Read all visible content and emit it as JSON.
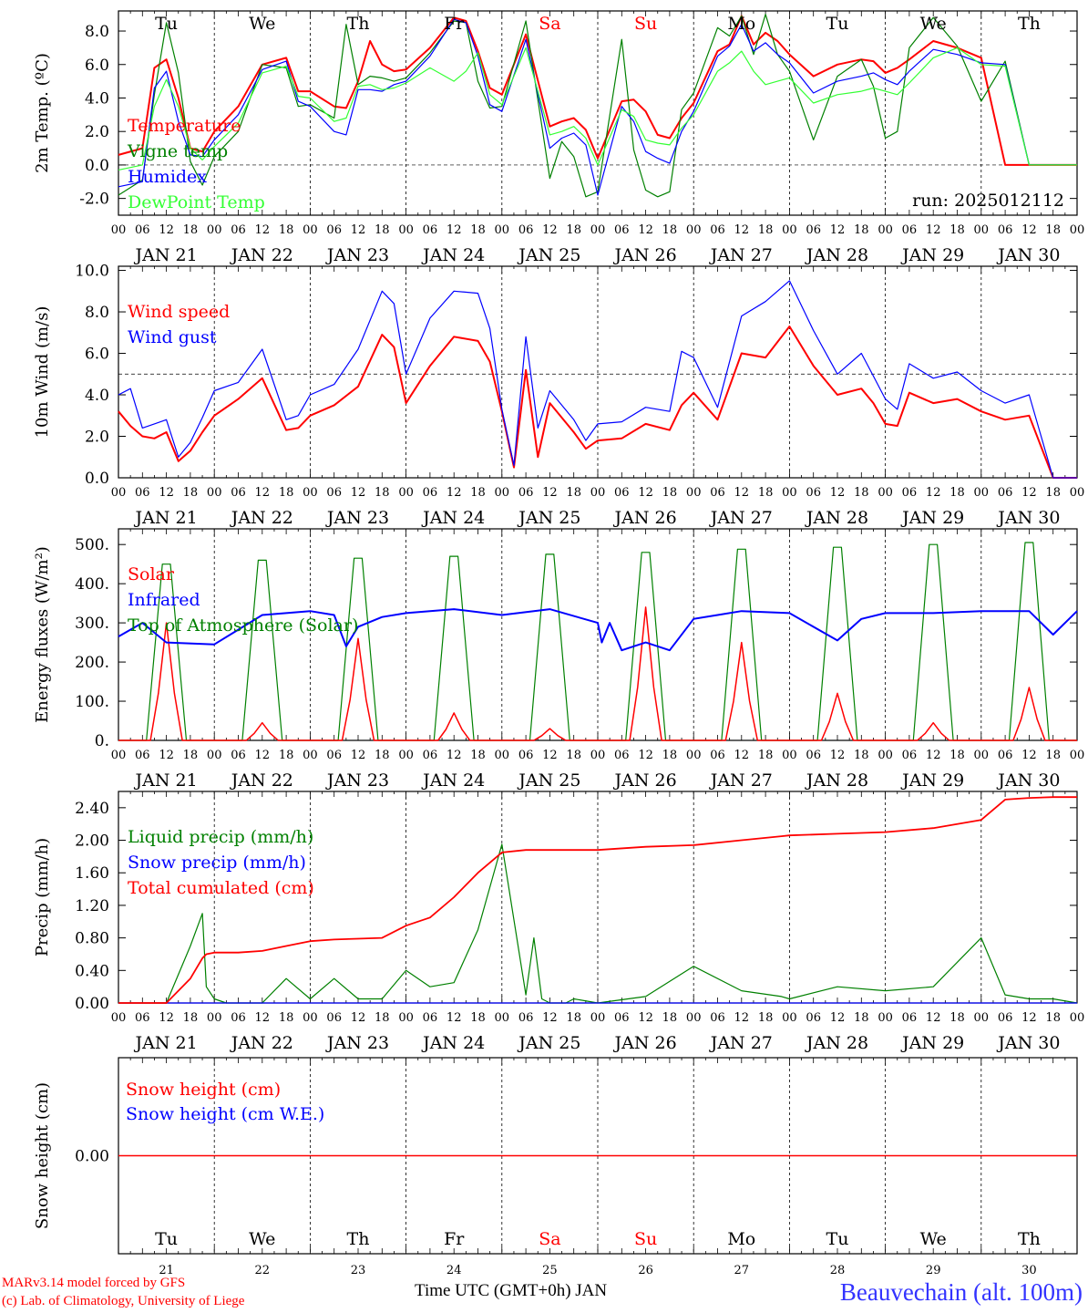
{
  "chart_data": [
    {
      "type": "line",
      "ylabel": "2m Temp. (ºC)",
      "ylim": [
        -3.0,
        9.2
      ],
      "yticks": [
        "8.0",
        "6.0",
        "4.0",
        "2.0",
        "0.0",
        "-2.0"
      ],
      "ref_line": 0,
      "annotation": "run: 2025012112",
      "x_unit": "hours since JAN 21 00 UTC",
      "x": [
        0,
        6,
        9,
        12,
        15,
        18,
        21,
        24,
        30,
        36,
        42,
        45,
        48,
        54,
        57,
        60,
        63,
        66,
        69,
        72,
        78,
        84,
        87,
        90,
        93,
        96,
        102,
        108,
        111,
        114,
        117,
        120,
        126,
        129,
        132,
        135,
        138,
        141,
        144,
        150,
        153,
        156,
        159,
        162,
        165,
        168,
        174,
        180,
        186,
        189,
        192,
        195,
        198,
        204,
        210,
        216,
        222,
        228,
        234,
        240
      ],
      "series": [
        {
          "name": "Temperature",
          "color": "#ff0000",
          "values": [
            0.6,
            1.0,
            5.8,
            6.3,
            4.0,
            1.0,
            0.8,
            2.0,
            3.5,
            6.0,
            6.4,
            4.4,
            4.4,
            3.5,
            3.4,
            5.0,
            7.4,
            6.0,
            5.6,
            5.7,
            7.0,
            8.8,
            8.6,
            6.8,
            4.6,
            4.2,
            7.8,
            2.3,
            2.6,
            2.8,
            2.1,
            0.4,
            3.8,
            3.9,
            3.2,
            1.8,
            1.6,
            2.8,
            3.7,
            6.8,
            7.2,
            8.9,
            7.2,
            7.9,
            7.4,
            6.6,
            5.3,
            6.0,
            6.3,
            6.2,
            5.5,
            5.8,
            6.3,
            7.4,
            7.0,
            6.4,
            0.0,
            0.0,
            0.0,
            0.0
          ]
        },
        {
          "name": "Vigne temp",
          "color": "#008000",
          "values": [
            -1.8,
            -0.9,
            4.2,
            8.5,
            5.5,
            0.2,
            -1.2,
            0.5,
            2.0,
            6.0,
            5.8,
            3.5,
            3.6,
            2.8,
            8.4,
            4.8,
            5.3,
            5.2,
            5.0,
            5.2,
            6.7,
            8.6,
            8.5,
            5.0,
            3.4,
            3.5,
            8.6,
            -0.8,
            1.4,
            0.5,
            -1.9,
            -1.6,
            7.5,
            0.9,
            -1.5,
            -1.9,
            -1.6,
            3.3,
            4.3,
            8.2,
            7.7,
            8.9,
            6.6,
            9.0,
            6.6,
            5.6,
            1.5,
            5.3,
            6.3,
            4.7,
            1.6,
            2.0,
            7.0,
            8.8,
            7.1,
            3.8,
            6.2,
            0.0,
            0.0,
            0.0
          ]
        },
        {
          "name": "Humidex",
          "color": "#0000ff",
          "values": [
            -1.3,
            -1.0,
            4.6,
            5.6,
            2.6,
            0.6,
            0.5,
            1.5,
            3.0,
            5.7,
            6.2,
            3.8,
            3.5,
            2.0,
            1.8,
            4.5,
            4.5,
            4.4,
            4.8,
            5.0,
            6.5,
            8.7,
            8.5,
            6.5,
            3.6,
            3.2,
            7.5,
            1.0,
            1.6,
            1.9,
            1.2,
            -1.8,
            3.5,
            2.6,
            0.8,
            0.4,
            0.1,
            2.0,
            3.2,
            6.5,
            7.1,
            8.4,
            6.8,
            7.3,
            6.6,
            6.1,
            4.3,
            5.0,
            5.3,
            5.5,
            5.1,
            4.8,
            5.6,
            6.9,
            6.6,
            6.1,
            6.0,
            0.0,
            0.0,
            0.0
          ]
        },
        {
          "name": "DewPoint Temp",
          "color": "#33ff33",
          "values": [
            -0.3,
            0.0,
            3.5,
            5.1,
            3.5,
            1.0,
            0.3,
            1.1,
            2.5,
            5.5,
            5.9,
            4.1,
            4.0,
            2.6,
            2.8,
            4.7,
            4.8,
            4.5,
            4.6,
            4.9,
            5.8,
            5.0,
            5.6,
            6.7,
            4.2,
            3.6,
            7.0,
            1.8,
            2.0,
            2.3,
            1.6,
            0.0,
            3.3,
            2.9,
            1.5,
            1.3,
            1.2,
            2.2,
            3.0,
            5.6,
            6.1,
            6.8,
            5.6,
            4.8,
            5.0,
            5.2,
            3.7,
            4.2,
            4.4,
            4.6,
            4.4,
            4.2,
            4.9,
            6.4,
            7.0,
            6.0,
            5.9,
            0.0,
            0.0,
            0.0
          ]
        }
      ]
    },
    {
      "type": "line",
      "ylabel": "10m Wind (m/s)",
      "ylim": [
        0,
        10
      ],
      "yticks": [
        "10.0",
        "8.0",
        "6.0",
        "4.0",
        "2.0",
        "0.0"
      ],
      "ref_line": 5,
      "x_unit": "hours since JAN 21 00 UTC",
      "x": [
        0,
        3,
        6,
        9,
        12,
        15,
        18,
        21,
        24,
        30,
        36,
        42,
        45,
        48,
        54,
        60,
        66,
        69,
        72,
        78,
        84,
        90,
        93,
        96,
        99,
        102,
        105,
        108,
        114,
        117,
        120,
        126,
        132,
        138,
        141,
        144,
        150,
        156,
        162,
        168,
        174,
        180,
        186,
        189,
        192,
        195,
        198,
        204,
        210,
        216,
        222,
        228,
        234,
        240
      ],
      "series": [
        {
          "name": "Wind speed",
          "color": "#ff0000",
          "values": [
            3.2,
            2.5,
            2.0,
            1.9,
            2.2,
            0.8,
            1.3,
            2.2,
            3.0,
            3.8,
            4.8,
            2.3,
            2.4,
            3.0,
            3.5,
            4.4,
            6.9,
            6.3,
            3.6,
            5.4,
            6.8,
            6.6,
            5.6,
            3.2,
            0.5,
            5.2,
            1.0,
            3.6,
            2.2,
            1.4,
            1.8,
            1.9,
            2.6,
            2.3,
            3.5,
            4.1,
            2.8,
            6.0,
            5.8,
            7.3,
            5.4,
            4.0,
            4.3,
            3.6,
            2.6,
            2.5,
            4.1,
            3.6,
            3.8,
            3.2,
            2.8,
            3.0,
            0.0,
            0.0
          ]
        },
        {
          "name": "Wind gust",
          "color": "#0000ff",
          "values": [
            4.0,
            4.3,
            2.4,
            2.6,
            2.8,
            1.0,
            1.7,
            2.9,
            4.2,
            4.6,
            6.2,
            2.8,
            3.0,
            4.0,
            4.5,
            6.2,
            9.0,
            8.4,
            5.0,
            7.7,
            9.0,
            8.9,
            7.2,
            3.3,
            0.6,
            6.8,
            2.4,
            4.2,
            2.8,
            1.8,
            2.6,
            2.7,
            3.4,
            3.2,
            6.1,
            5.8,
            3.4,
            7.8,
            8.5,
            9.5,
            7.1,
            5.0,
            6.0,
            4.9,
            3.8,
            3.3,
            5.5,
            4.8,
            5.1,
            4.2,
            3.6,
            4.0,
            0.0,
            0.0
          ]
        }
      ]
    },
    {
      "type": "line",
      "ylabel": "Energy fluxes (W/m²)",
      "ylim": [
        0,
        540
      ],
      "yticks": [
        "500.",
        "400.",
        "300.",
        "200.",
        "100.",
        "0."
      ],
      "x_unit": "hours since JAN 21 00 UTC",
      "series": [
        {
          "name": "Solar",
          "color": "#ff0000",
          "daily_peaks": [
            300,
            45,
            260,
            70,
            30,
            340,
            250,
            120,
            45,
            135
          ],
          "peak_hour": 12
        },
        {
          "name": "Infrared",
          "color": "#0000ff",
          "x": [
            0,
            6,
            12,
            24,
            36,
            48,
            54,
            57,
            60,
            66,
            72,
            84,
            96,
            108,
            120,
            121,
            123,
            126,
            132,
            138,
            144,
            150,
            156,
            168,
            180,
            186,
            192,
            204,
            216,
            228,
            234,
            240
          ],
          "values": [
            265,
            300,
            250,
            245,
            320,
            330,
            320,
            240,
            290,
            315,
            325,
            335,
            320,
            335,
            300,
            250,
            300,
            230,
            250,
            230,
            310,
            320,
            330,
            325,
            255,
            310,
            325,
            325,
            330,
            330,
            270,
            330
          ]
        },
        {
          "name": "Top of Atmosphere (Solar)",
          "color": "#008000",
          "daily_peaks": [
            450,
            460,
            465,
            470,
            475,
            480,
            488,
            493,
            500,
            505
          ],
          "daylight_hours": [
            7,
            17
          ]
        }
      ]
    },
    {
      "type": "line",
      "ylabel": "Precip (mm/h)",
      "ylim": [
        0,
        2.6
      ],
      "yticks": [
        "2.40",
        "2.00",
        "1.60",
        "1.20",
        "0.80",
        "0.40",
        "0.00"
      ],
      "x_unit": "hours since JAN 21 00 UTC",
      "x": [
        0,
        12,
        18,
        21,
        22,
        24,
        27,
        30,
        36,
        42,
        48,
        54,
        60,
        66,
        72,
        78,
        84,
        90,
        96,
        102,
        104,
        106,
        108,
        112,
        114,
        120,
        132,
        144,
        156,
        166,
        168,
        180,
        192,
        204,
        216,
        222,
        228,
        234,
        240
      ],
      "series": [
        {
          "name": "Liquid precip (mm/h)",
          "color": "#008000",
          "values": [
            0,
            0,
            0.7,
            1.1,
            0.2,
            0.05,
            0,
            0,
            0,
            0.3,
            0.05,
            0.3,
            0.05,
            0.05,
            0.4,
            0.2,
            0.25,
            0.9,
            1.95,
            0.1,
            0.8,
            0.05,
            0,
            0,
            0.05,
            0,
            0.08,
            0.45,
            0.15,
            0.08,
            0.05,
            0.2,
            0.15,
            0.2,
            0.8,
            0.1,
            0.05,
            0.05,
            0
          ]
        },
        {
          "name": "Snow precip (mm/h)",
          "color": "#0000ff",
          "values": [
            0,
            0,
            0,
            0,
            0,
            0,
            0,
            0,
            0,
            0,
            0,
            0,
            0,
            0,
            0,
            0,
            0,
            0,
            0,
            0,
            0,
            0,
            0,
            0,
            0,
            0,
            0,
            0,
            0,
            0,
            0,
            0,
            0,
            0,
            0,
            0,
            0,
            0,
            0
          ]
        },
        {
          "name": "Total cumulated (cm)",
          "color": "#ff0000",
          "values": [
            0,
            0,
            0.3,
            0.55,
            0.6,
            0.62,
            0.62,
            0.62,
            0.64,
            0.7,
            0.76,
            0.78,
            0.79,
            0.8,
            0.95,
            1.05,
            1.3,
            1.6,
            1.85,
            1.88,
            1.88,
            1.88,
            1.88,
            1.88,
            1.88,
            1.88,
            1.92,
            1.94,
            2.0,
            2.05,
            2.06,
            2.08,
            2.1,
            2.15,
            2.25,
            2.5,
            2.52,
            2.53,
            2.53
          ]
        }
      ]
    },
    {
      "type": "line",
      "ylabel": "Snow height (cm)",
      "yticks": [
        "0.00"
      ],
      "series": [
        {
          "name": "Snow height (cm)",
          "color": "#ff0000",
          "values": [
            0
          ]
        },
        {
          "name": "Snow height (cm W.E.)",
          "color": "#0000ff",
          "values": [
            0
          ]
        }
      ]
    }
  ],
  "days": [
    {
      "dow": "Tu",
      "date": "JAN 21",
      "num": "21",
      "weekend": false
    },
    {
      "dow": "We",
      "date": "JAN 22",
      "num": "22",
      "weekend": false
    },
    {
      "dow": "Th",
      "date": "JAN 23",
      "num": "23",
      "weekend": false
    },
    {
      "dow": "Fr",
      "date": "JAN 24",
      "num": "24",
      "weekend": false
    },
    {
      "dow": "Sa",
      "date": "JAN 25",
      "num": "25",
      "weekend": true
    },
    {
      "dow": "Su",
      "date": "JAN 26",
      "num": "26",
      "weekend": true
    },
    {
      "dow": "Mo",
      "date": "JAN 27",
      "num": "27",
      "weekend": false
    },
    {
      "dow": "Tu",
      "date": "JAN 28",
      "num": "28",
      "weekend": false
    },
    {
      "dow": "We",
      "date": "JAN 29",
      "num": "29",
      "weekend": false
    },
    {
      "dow": "Th",
      "date": "JAN 30",
      "num": "30",
      "weekend": false
    }
  ],
  "hour_labels": [
    "00",
    "06",
    "12",
    "18"
  ],
  "weekend_color": "#ff0000",
  "footer": {
    "credit_line1": "MARv3.14 model forced by GFS",
    "credit_line2": "(c) Lab. of Climatology, University of Liege",
    "xaxis_title": "Time UTC (GMT+0h) JAN",
    "station": "Beauvechain (alt. 100m)"
  }
}
